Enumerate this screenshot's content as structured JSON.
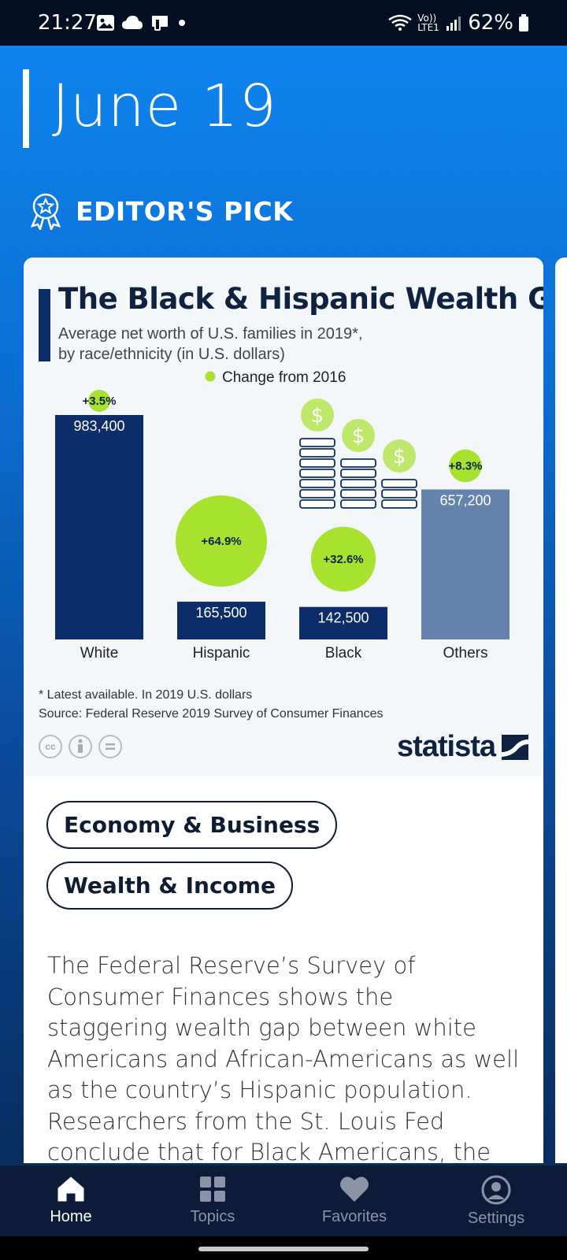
{
  "status": {
    "time": "21:27",
    "network": "Vo)) LTE1",
    "battery": "62%"
  },
  "date": "June 19",
  "section": {
    "label": "EDITOR'S PICK"
  },
  "infographic": {
    "title": "The Black & Hispanic Wealth Gap",
    "subtitle_line1": "Average net worth of U.S. families in 2019*,",
    "subtitle_line2": "by race/ethnicity (in U.S. dollars)",
    "legend": "Change from 2016",
    "note": "* Latest available. In 2019 U.S. dollars",
    "source": "Source: Federal Reserve 2019 Survey of Consumer Finances",
    "brand": "statista",
    "cc_icons": [
      "cc-license-icon",
      "attribution-icon",
      "no-derivatives-icon"
    ]
  },
  "chart_data": {
    "type": "bar",
    "categories": [
      "White",
      "Hispanic",
      "Black",
      "Others"
    ],
    "values": [
      983400,
      165500,
      142500,
      657200
    ],
    "value_labels": [
      "983,400",
      "165,500",
      "142,500",
      "657,200"
    ],
    "change_from_2016": [
      "+3.5%",
      "+64.9%",
      "+32.6%",
      "+8.3%"
    ],
    "change_values": [
      3.5,
      64.9,
      32.6,
      8.3
    ],
    "bar_colors": [
      "#0c2d6a",
      "#0c2d6a",
      "#0c2d6a",
      "#6583ad"
    ],
    "change_color": "#a6e22e",
    "legend_label": "Change from 2016"
  },
  "tags": [
    "Economy & Business",
    "Wealth & Income"
  ],
  "body": "The Federal Reserve’s Survey of Consumer Finances shows the staggering wealth gap between white Americans and African-Americans as well as the country’s Hispanic population. Researchers from the St. Louis Fed conclude that for Black Americans, the roots of wealth inequality can",
  "nav": [
    {
      "label": "Home",
      "icon": "home-icon",
      "active": true
    },
    {
      "label": "Topics",
      "icon": "grid-icon",
      "active": false
    },
    {
      "label": "Favorites",
      "icon": "heart-icon",
      "active": false
    },
    {
      "label": "Settings",
      "icon": "user-icon",
      "active": false
    }
  ],
  "colors": {
    "accent": "#0f86f2",
    "navy": "#0f2240",
    "nav_bg": "#0c1c38",
    "green": "#a6e22e"
  }
}
